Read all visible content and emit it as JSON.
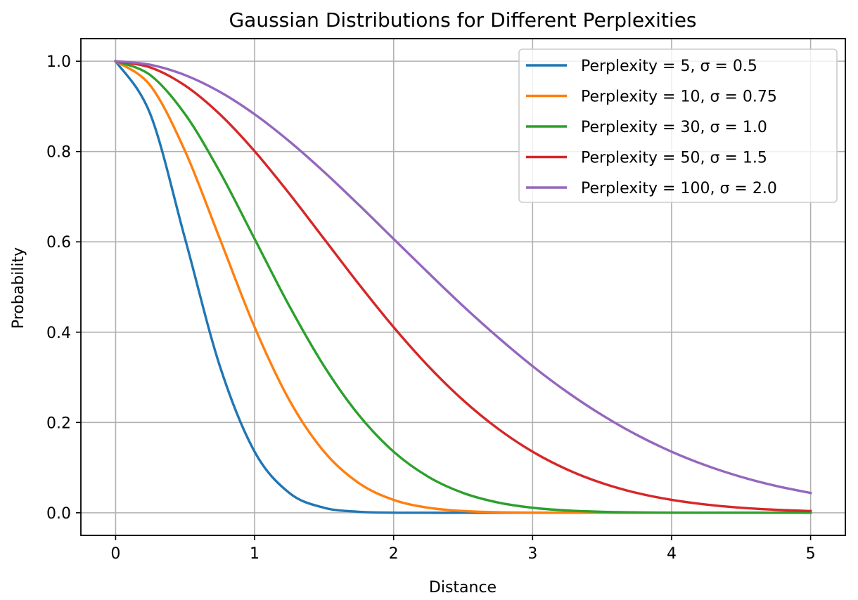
{
  "chart_data": {
    "type": "line",
    "title": "Gaussian Distributions for Different Perplexities",
    "xlabel": "Distance",
    "ylabel": "Probability",
    "xlim": [
      -0.25,
      5.25
    ],
    "ylim": [
      -0.05,
      1.05
    ],
    "xticks": [
      0,
      1,
      2,
      3,
      4,
      5
    ],
    "xtick_labels": [
      "0",
      "1",
      "2",
      "3",
      "4",
      "5"
    ],
    "yticks": [
      0.0,
      0.2,
      0.4,
      0.6,
      0.8,
      1.0
    ],
    "ytick_labels": [
      "0.0",
      "0.2",
      "0.4",
      "0.6",
      "0.8",
      "1.0"
    ],
    "grid": true,
    "legend_position": "top-right",
    "x": [
      0,
      0.25,
      0.5,
      0.75,
      1.0,
      1.25,
      1.5,
      1.75,
      2.0,
      2.25,
      2.5,
      2.75,
      3.0,
      3.25,
      3.5,
      3.75,
      4.0,
      4.25,
      4.5,
      4.75,
      5.0
    ],
    "series": [
      {
        "name": "Perplexity = 5, σ = 0.5",
        "color": "#1f77b4",
        "values": [
          1.0,
          0.8825,
          0.6065,
          0.3247,
          0.1353,
          0.0439,
          0.0111,
          0.0022,
          0.0003,
          0.0,
          0.0,
          0.0,
          0.0,
          0.0,
          0.0,
          0.0,
          0.0,
          0.0,
          0.0,
          0.0,
          0.0
        ]
      },
      {
        "name": "Perplexity = 10, σ = 0.75",
        "color": "#ff7f0e",
        "values": [
          1.0,
          0.946,
          0.8007,
          0.6065,
          0.4111,
          0.2494,
          0.1353,
          0.0657,
          0.0286,
          0.0111,
          0.0039,
          0.0012,
          0.0003,
          0.0001,
          0.0,
          0.0,
          0.0,
          0.0,
          0.0,
          0.0,
          0.0
        ]
      },
      {
        "name": "Perplexity = 30, σ = 1.0",
        "color": "#2ca02c",
        "values": [
          1.0,
          0.9692,
          0.8825,
          0.7548,
          0.6065,
          0.4578,
          0.3247,
          0.2163,
          0.1353,
          0.0796,
          0.0439,
          0.0228,
          0.0111,
          0.0051,
          0.0022,
          0.0009,
          0.0003,
          0.0001,
          0.0,
          0.0,
          0.0
        ]
      },
      {
        "name": "Perplexity = 50, σ = 1.5",
        "color": "#d62728",
        "values": [
          1.0,
          0.9862,
          0.946,
          0.8825,
          0.8007,
          0.7066,
          0.6065,
          0.5063,
          0.4111,
          0.3247,
          0.2494,
          0.1864,
          0.1353,
          0.0956,
          0.0657,
          0.0439,
          0.0286,
          0.0181,
          0.0111,
          0.0066,
          0.0039
        ]
      },
      {
        "name": "Perplexity = 100, σ = 2.0",
        "color": "#9467bd",
        "values": [
          1.0,
          0.9922,
          0.9692,
          0.9321,
          0.8825,
          0.8226,
          0.7548,
          0.6818,
          0.6065,
          0.5313,
          0.4578,
          0.3889,
          0.3247,
          0.2671,
          0.2163,
          0.1724,
          0.1353,
          0.1046,
          0.0796,
          0.0596,
          0.0439
        ]
      }
    ]
  }
}
